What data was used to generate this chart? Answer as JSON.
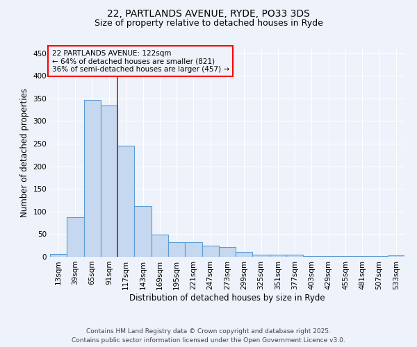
{
  "title_line1": "22, PARTLANDS AVENUE, RYDE, PO33 3DS",
  "title_line2": "Size of property relative to detached houses in Ryde",
  "xlabel": "Distribution of detached houses by size in Ryde",
  "ylabel": "Number of detached properties",
  "categories": [
    "13sqm",
    "39sqm",
    "65sqm",
    "91sqm",
    "117sqm",
    "143sqm",
    "169sqm",
    "195sqm",
    "221sqm",
    "247sqm",
    "273sqm",
    "299sqm",
    "325sqm",
    "351sqm",
    "377sqm",
    "403sqm",
    "429sqm",
    "455sqm",
    "481sqm",
    "507sqm",
    "533sqm"
  ],
  "values": [
    6,
    88,
    347,
    335,
    246,
    112,
    49,
    32,
    32,
    25,
    21,
    10,
    5,
    5,
    4,
    2,
    1,
    2,
    1,
    1,
    3
  ],
  "bar_color": "#c5d8f0",
  "bar_edge_color": "#5b9bd5",
  "bar_linewidth": 0.8,
  "ylim": [
    0,
    460
  ],
  "yticks": [
    0,
    50,
    100,
    150,
    200,
    250,
    300,
    350,
    400,
    450
  ],
  "red_line_x": 3.5,
  "annotation_box_text_line1": "22 PARTLANDS AVENUE: 122sqm",
  "annotation_box_text_line2": "← 64% of detached houses are smaller (821)",
  "annotation_box_text_line3": "36% of semi-detached houses are larger (457) →",
  "footer_line1": "Contains HM Land Registry data © Crown copyright and database right 2025.",
  "footer_line2": "Contains public sector information licensed under the Open Government Licence v3.0.",
  "background_color": "#eef2fa",
  "grid_color": "#ffffff",
  "title_fontsize": 10,
  "subtitle_fontsize": 9,
  "axis_label_fontsize": 8.5,
  "tick_fontsize": 7.5,
  "annotation_fontsize": 7.5,
  "footer_fontsize": 6.5
}
